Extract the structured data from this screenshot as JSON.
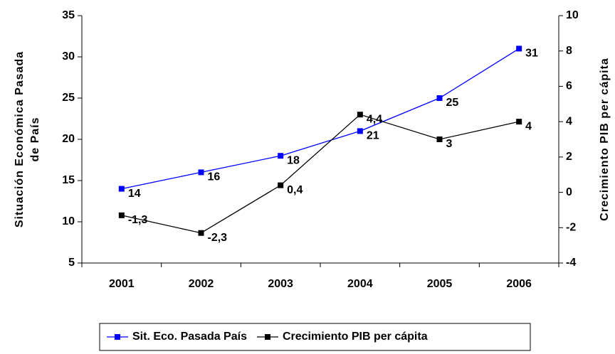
{
  "chart_data": {
    "type": "line",
    "categories": [
      "2001",
      "2002",
      "2003",
      "2004",
      "2005",
      "2006"
    ],
    "y_label": [
      "Situación Económica Pasada",
      "de País"
    ],
    "y2_label": "Crecimiento PIB per cápita",
    "ylim": [
      5,
      35
    ],
    "yticks": [
      5,
      10,
      15,
      20,
      25,
      30,
      35
    ],
    "y2lim": [
      -4,
      10
    ],
    "y2ticks": [
      -4,
      -2,
      0,
      2,
      4,
      6,
      8,
      10
    ],
    "legend": "bottom",
    "series": [
      {
        "name": "Sit. Eco. Pasada País",
        "color": "#0000ff",
        "values": [
          14,
          16,
          18,
          21,
          25,
          31
        ]
      },
      {
        "name": "Crecimiento PIB per cápita",
        "color": "#000000",
        "axis": "y2",
        "values": [
          -1.3,
          -2.3,
          0.4,
          4.4,
          3,
          4
        ],
        "value_labels": [
          "-1,3",
          "-2,3",
          "0,4",
          "4,4",
          "3",
          "4"
        ]
      }
    ]
  }
}
